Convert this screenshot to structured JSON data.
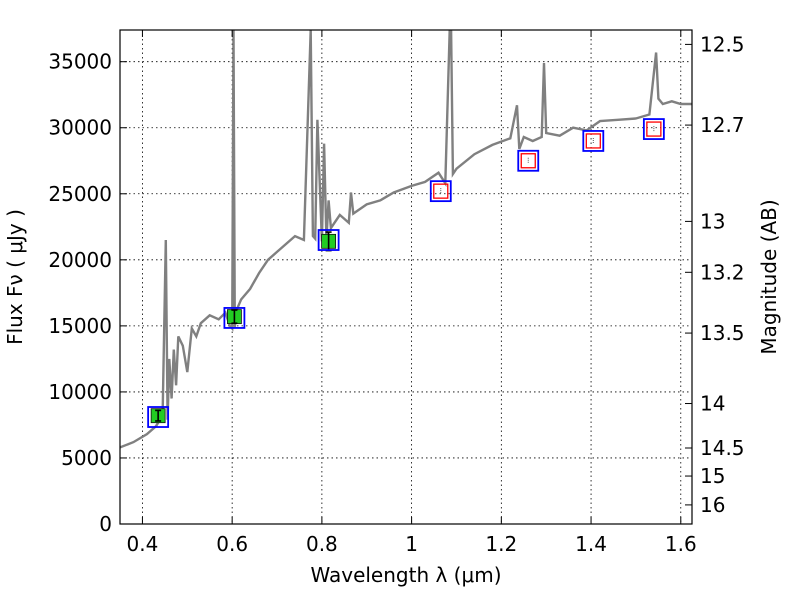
{
  "chart_data": {
    "type": "line",
    "xlabel": "Wavelength  λ (μm)",
    "ylabel": "Flux  Fν  ( μJy )",
    "ylabel_right": "Magnitude (AB)",
    "xlim": [
      0.35,
      1.625
    ],
    "ylim": [
      0,
      37400
    ],
    "grid": true,
    "x_ticks": [
      0.4,
      0.6,
      0.8,
      1.0,
      1.2,
      1.4,
      1.6
    ],
    "x_tick_labels": [
      "0.4",
      "0.6",
      "0.8",
      "1",
      "1.2",
      "1.4",
      "1.6"
    ],
    "y_ticks": [
      0,
      5000,
      10000,
      15000,
      20000,
      25000,
      30000,
      35000
    ],
    "y_tick_labels": [
      "0",
      "5000",
      "10000",
      "15000",
      "20000",
      "25000",
      "30000",
      "35000"
    ],
    "right_ticks": [
      {
        "label": "12.5",
        "mag": 12.5
      },
      {
        "label": "12.7",
        "mag": 12.7
      },
      {
        "label": "13",
        "mag": 13.0
      },
      {
        "label": "13.2",
        "mag": 13.2
      },
      {
        "label": "13.5",
        "mag": 13.5
      },
      {
        "label": "14",
        "mag": 14.0
      },
      {
        "label": "14.5",
        "mag": 14.5
      },
      {
        "label": "15",
        "mag": 15.0
      },
      {
        "label": "16",
        "mag": 16.0
      }
    ],
    "spectrum": {
      "color": "#808080",
      "x": [
        0.35,
        0.38,
        0.41,
        0.43,
        0.445,
        0.452,
        0.456,
        0.46,
        0.465,
        0.47,
        0.475,
        0.48,
        0.49,
        0.5,
        0.51,
        0.52,
        0.53,
        0.55,
        0.57,
        0.585,
        0.595,
        0.6,
        0.603,
        0.606,
        0.61,
        0.62,
        0.64,
        0.66,
        0.68,
        0.7,
        0.72,
        0.74,
        0.76,
        0.775,
        0.78,
        0.785,
        0.79,
        0.8,
        0.805,
        0.81,
        0.815,
        0.82,
        0.84,
        0.86,
        0.865,
        0.87,
        0.9,
        0.93,
        0.96,
        1.0,
        1.03,
        1.06,
        1.075,
        1.085,
        1.088,
        1.092,
        1.1,
        1.14,
        1.18,
        1.22,
        1.235,
        1.24,
        1.25,
        1.27,
        1.29,
        1.295,
        1.3,
        1.33,
        1.36,
        1.39,
        1.42,
        1.46,
        1.5,
        1.53,
        1.545,
        1.55,
        1.56,
        1.58,
        1.6,
        1.625
      ],
      "y": [
        5800,
        6200,
        6800,
        7400,
        8200,
        21500,
        7900,
        12500,
        9500,
        13200,
        10500,
        14200,
        13500,
        11500,
        14800,
        14200,
        15200,
        15800,
        15500,
        16000,
        15000,
        14800,
        37400,
        14900,
        16200,
        17000,
        17800,
        19000,
        20000,
        20600,
        21200,
        21800,
        21500,
        37400,
        21800,
        21600,
        30600,
        21400,
        28800,
        21500,
        24500,
        22400,
        23400,
        22800,
        25100,
        23500,
        24200,
        24500,
        25100,
        25600,
        25900,
        26600,
        25800,
        37400,
        37400,
        26500,
        26900,
        28000,
        28700,
        29200,
        31700,
        28400,
        29300,
        29000,
        29300,
        34900,
        29600,
        29400,
        30000,
        29800,
        30500,
        30600,
        30700,
        31000,
        35700,
        32200,
        31800,
        32000,
        31800,
        31800
      ]
    },
    "photometry_measured": {
      "color": "#22cc22",
      "x": [
        0.435,
        0.605,
        0.815
      ],
      "y": [
        8200,
        15700,
        21400
      ],
      "yerr": [
        400,
        500,
        700
      ]
    },
    "model_boxes": {
      "color": "#0000ff",
      "x": [
        0.435,
        0.605,
        0.815,
        1.065,
        1.26,
        1.405,
        1.54
      ],
      "y": [
        8100,
        15600,
        21500,
        25200,
        27500,
        29000,
        29900
      ]
    },
    "red_boxes": {
      "color": "#ff0000",
      "x": [
        1.065,
        1.26,
        1.405,
        1.54
      ],
      "y": [
        25200,
        27500,
        29000,
        29900
      ]
    }
  }
}
